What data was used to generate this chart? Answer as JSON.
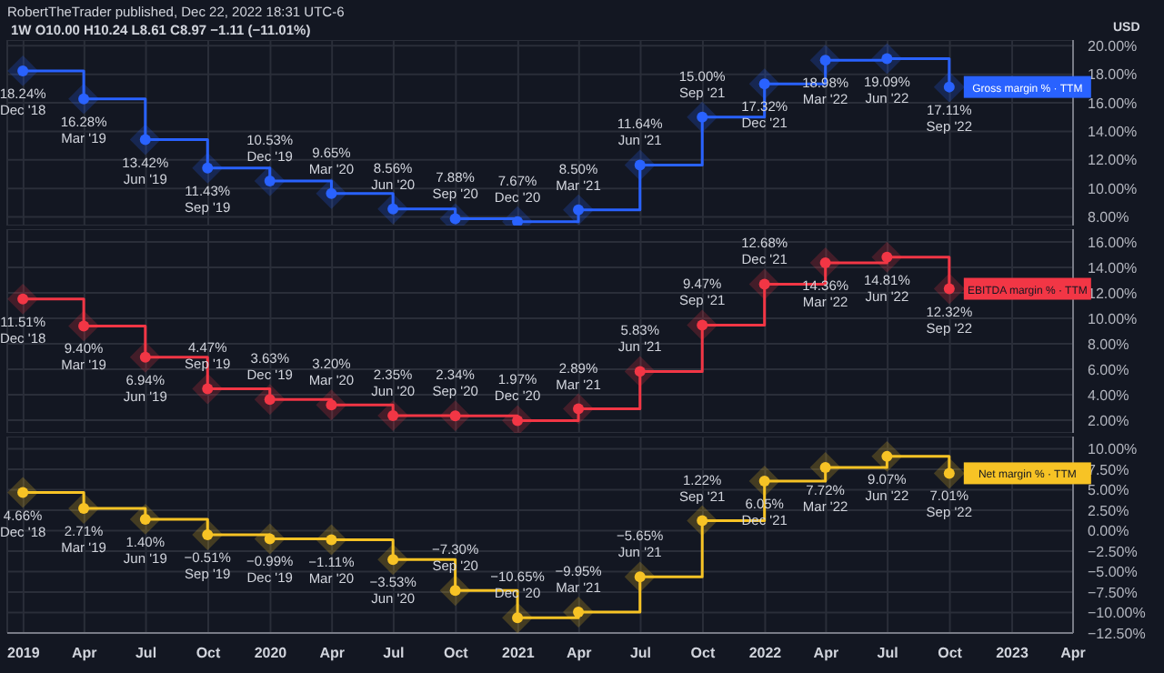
{
  "chart_data": [
    {
      "type": "step",
      "title": "RobertTheTrader published, Dec 22, 2022 18:31 UTC-6",
      "subtitle": "1W O10.00 H10.24 L8.61 C8.97 −1.11 (−11.01%)",
      "annotations": [
        "USD"
      ],
      "x": [
        "2018-12-31",
        "2019-03-31",
        "2019-06-30",
        "2019-09-30",
        "2019-12-31",
        "2020-03-31",
        "2020-06-30",
        "2020-09-30",
        "2020-12-31",
        "2021-03-31",
        "2021-06-30",
        "2021-09-30",
        "2021-12-31",
        "2022-03-31",
        "2022-06-30",
        "2022-09-30"
      ],
      "series": [
        {
          "name": "Gross margin % · TTM",
          "color": "#2962ff",
          "values": [
            18.24,
            16.28,
            13.42,
            11.43,
            10.53,
            9.65,
            8.56,
            7.88,
            7.67,
            8.5,
            11.64,
            15.0,
            17.32,
            18.98,
            19.09,
            17.11
          ],
          "value_labels": [
            "18.24%\nDec '18",
            "16.28%\nMar '19",
            "13.42%\nJun '19",
            "11.43%\nSep '19",
            "10.53%\nDec '19",
            "9.65%\nMar '20",
            "8.56%\nJun '20",
            "7.88%\nSep '20",
            "7.67%\nDec '20",
            "8.50%\nMar '21",
            "11.64%\nJun '21",
            "15.00%\nSep '21",
            "17.32%\nDec '21",
            "18.98%\nMar '22",
            "19.09%\nJun '22",
            "17.11%\nSep '22"
          ]
        }
      ],
      "xlim": [
        "2018-12-08",
        "2023-04-01"
      ],
      "xticks": [
        {
          "value": "2019-01-01",
          "label": null
        },
        {
          "value": "2019-04-01",
          "label": null
        },
        {
          "value": "2019-07-01",
          "label": null
        },
        {
          "value": "2019-10-01",
          "label": null
        },
        {
          "value": "2020-01-01",
          "label": null
        },
        {
          "value": "2020-04-01",
          "label": null
        },
        {
          "value": "2020-07-01",
          "label": null
        },
        {
          "value": "2020-10-01",
          "label": null
        },
        {
          "value": "2021-01-01",
          "label": null
        },
        {
          "value": "2021-04-01",
          "label": null
        },
        {
          "value": "2021-07-01",
          "label": null
        },
        {
          "value": "2021-10-01",
          "label": null
        },
        {
          "value": "2022-01-01",
          "label": null
        },
        {
          "value": "2022-04-01",
          "label": null
        },
        {
          "value": "2022-07-01",
          "label": null
        },
        {
          "value": "2022-10-01",
          "label": null
        },
        {
          "value": "2023-01-01",
          "label": null
        },
        {
          "value": "2023-04-01",
          "label": null
        }
      ],
      "ylim": [
        7.4,
        20.4
      ],
      "yticks": [
        {
          "value": 8,
          "label": "8.00%"
        },
        {
          "value": 10,
          "label": "10.00%"
        },
        {
          "value": 12,
          "label": "12.00%"
        },
        {
          "value": 14,
          "label": "14.00%"
        },
        {
          "value": 16,
          "label": "16.00%"
        },
        {
          "value": 18,
          "label": "18.00%"
        },
        {
          "value": 20,
          "label": "20.00%"
        }
      ],
      "grid": true,
      "legend": false,
      "marker": "circle",
      "tick_labels": "y"
    },
    {
      "type": "step",
      "x": [
        "2018-12-31",
        "2019-03-31",
        "2019-06-30",
        "2019-09-30",
        "2019-12-31",
        "2020-03-31",
        "2020-06-30",
        "2020-09-30",
        "2020-12-31",
        "2021-03-31",
        "2021-06-30",
        "2021-09-30",
        "2021-12-31",
        "2022-03-31",
        "2022-06-30",
        "2022-09-30"
      ],
      "series": [
        {
          "name": "EBITDA margin % · TTM",
          "color": "#f23645",
          "values": [
            11.51,
            9.4,
            6.94,
            4.47,
            3.63,
            3.2,
            2.35,
            2.34,
            1.97,
            2.89,
            5.83,
            9.47,
            12.68,
            14.36,
            14.81,
            12.32
          ],
          "value_labels": [
            "11.51%\nDec '18",
            "9.40%\nMar '19",
            "6.94%\nJun '19",
            "4.47%\nSep '19",
            "3.63%\nDec '19",
            "3.20%\nMar '20",
            "2.35%\nJun '20",
            "2.34%\nSep '20",
            "1.97%\nDec '20",
            "2.89%\nMar '21",
            "5.83%\nJun '21",
            "9.47%\nSep '21",
            "12.68%\nDec '21",
            "14.36%\nMar '22",
            "14.81%\nJun '22",
            "12.32%\nSep '22"
          ]
        }
      ],
      "xlim": [
        "2018-12-08",
        "2023-04-01"
      ],
      "xticks": [
        {
          "value": "2019-01-01",
          "label": null
        },
        {
          "value": "2019-04-01",
          "label": null
        },
        {
          "value": "2019-07-01",
          "label": null
        },
        {
          "value": "2019-10-01",
          "label": null
        },
        {
          "value": "2020-01-01",
          "label": null
        },
        {
          "value": "2020-04-01",
          "label": null
        },
        {
          "value": "2020-07-01",
          "label": null
        },
        {
          "value": "2020-10-01",
          "label": null
        },
        {
          "value": "2021-01-01",
          "label": null
        },
        {
          "value": "2021-04-01",
          "label": null
        },
        {
          "value": "2021-07-01",
          "label": null
        },
        {
          "value": "2021-10-01",
          "label": null
        },
        {
          "value": "2022-01-01",
          "label": null
        },
        {
          "value": "2022-04-01",
          "label": null
        },
        {
          "value": "2022-07-01",
          "label": null
        },
        {
          "value": "2022-10-01",
          "label": null
        },
        {
          "value": "2023-01-01",
          "label": null
        },
        {
          "value": "2023-04-01",
          "label": null
        }
      ],
      "ylim": [
        1,
        17
      ],
      "yticks": [
        {
          "value": 2,
          "label": "2.00%"
        },
        {
          "value": 4,
          "label": "4.00%"
        },
        {
          "value": 6,
          "label": "6.00%"
        },
        {
          "value": 8,
          "label": "8.00%"
        },
        {
          "value": 10,
          "label": "10.00%"
        },
        {
          "value": 12,
          "label": "12.00%"
        },
        {
          "value": 14,
          "label": "14.00%"
        },
        {
          "value": 16,
          "label": "16.00%"
        }
      ],
      "grid": true,
      "legend": false,
      "marker": "circle",
      "tick_labels": "y"
    },
    {
      "type": "step",
      "x": [
        "2018-12-31",
        "2019-03-31",
        "2019-06-30",
        "2019-09-30",
        "2019-12-31",
        "2020-03-31",
        "2020-06-30",
        "2020-09-30",
        "2020-12-31",
        "2021-03-31",
        "2021-06-30",
        "2021-09-30",
        "2021-12-31",
        "2022-03-31",
        "2022-06-30",
        "2022-09-30"
      ],
      "series": [
        {
          "name": "Net margin % · TTM",
          "color": "#f7c325",
          "values": [
            4.66,
            2.71,
            1.4,
            -0.51,
            -0.99,
            -1.11,
            -3.53,
            -7.3,
            -10.65,
            -9.95,
            -5.65,
            1.22,
            6.05,
            7.72,
            9.07,
            7.01
          ],
          "value_labels": [
            "4.66%\nDec '18",
            "2.71%\nMar '19",
            "1.40%\nJun '19",
            "−0.51%\nSep '19",
            "−0.99%\nDec '19",
            "−1.11%\nMar '20",
            "−3.53%\nJun '20",
            "−7.30%\nSep '20",
            "−10.65%\nDec '20",
            "−9.95%\nMar '21",
            "−5.65%\nJun '21",
            "1.22%\nSep '21",
            "6.05%\nDec '21",
            "7.72%\nMar '22",
            "9.07%\nJun '22",
            "7.01%\nSep '22"
          ]
        }
      ],
      "xlim": [
        "2018-12-08",
        "2023-04-01"
      ],
      "xticks": [
        {
          "value": "2019-01-01",
          "label": "2019"
        },
        {
          "value": "2019-04-01",
          "label": "Apr"
        },
        {
          "value": "2019-07-01",
          "label": "Jul"
        },
        {
          "value": "2019-10-01",
          "label": "Oct"
        },
        {
          "value": "2020-01-01",
          "label": "2020"
        },
        {
          "value": "2020-04-01",
          "label": "Apr"
        },
        {
          "value": "2020-07-01",
          "label": "Jul"
        },
        {
          "value": "2020-10-01",
          "label": "Oct"
        },
        {
          "value": "2021-01-01",
          "label": "2021"
        },
        {
          "value": "2021-04-01",
          "label": "Apr"
        },
        {
          "value": "2021-07-01",
          "label": "Jul"
        },
        {
          "value": "2021-10-01",
          "label": "Oct"
        },
        {
          "value": "2022-01-01",
          "label": "2022"
        },
        {
          "value": "2022-04-01",
          "label": "Apr"
        },
        {
          "value": "2022-07-01",
          "label": "Jul"
        },
        {
          "value": "2022-10-01",
          "label": "Oct"
        },
        {
          "value": "2023-01-01",
          "label": "2023"
        },
        {
          "value": "2023-04-01",
          "label": "Apr"
        }
      ],
      "ylim": [
        -12.5,
        11.5
      ],
      "yticks": [
        {
          "value": -12.5,
          "label": "−12.50%"
        },
        {
          "value": -10,
          "label": "−10.00%"
        },
        {
          "value": -7.5,
          "label": "−7.50%"
        },
        {
          "value": -5,
          "label": "−5.00%"
        },
        {
          "value": -2.5,
          "label": "−2.50%"
        },
        {
          "value": 0,
          "label": "0.00%"
        },
        {
          "value": 2.5,
          "label": "2.50%"
        },
        {
          "value": 5,
          "label": "5.00%"
        },
        {
          "value": 7.5,
          "label": "7.50%"
        },
        {
          "value": 10,
          "label": "10.00%"
        }
      ],
      "grid": true,
      "legend": false,
      "marker": "circle"
    }
  ]
}
